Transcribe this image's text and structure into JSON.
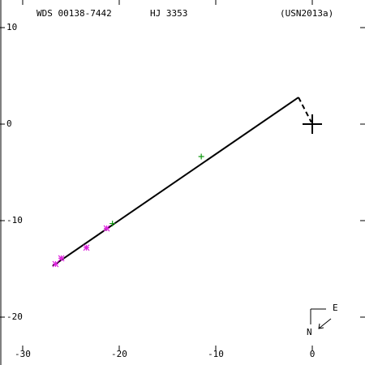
{
  "chart_data": {
    "type": "scatter",
    "title": "WDS 00138-7442",
    "subtitle": "HJ 3353",
    "reference": "(USN2013a)",
    "compass": {
      "east": "E",
      "north": "N"
    },
    "xlim": [
      -32.35,
      5.46
    ],
    "ylim": [
      -24.96,
      12.86
    ],
    "xticks": [
      -30,
      -20,
      -10,
      0
    ],
    "yticks": [
      10,
      0,
      -10,
      -20
    ],
    "series": [
      {
        "color": "#000000",
        "marker": "line",
        "x": [
          -26.9,
          -1.43
        ],
        "values": [
          -14.7,
          2.77
        ]
      },
      {
        "color": "#000000",
        "marker": "dashed",
        "x": [
          -1.43,
          -0.1
        ],
        "values": [
          2.77,
          0.2
        ]
      },
      {
        "color": "#000000",
        "marker": "big-plus",
        "x": [
          0
        ],
        "values": [
          0
        ]
      },
      {
        "color": "#119911",
        "marker": "plus",
        "x": [
          -11.5,
          -20.7
        ],
        "values": [
          -3.36,
          -10.3
        ]
      },
      {
        "color": "#dd22dd",
        "marker": "star",
        "x": [
          -21.3,
          -23.4,
          -26.0,
          -26.6
        ],
        "values": [
          -10.8,
          -12.8,
          -13.9,
          -14.5
        ]
      }
    ]
  }
}
